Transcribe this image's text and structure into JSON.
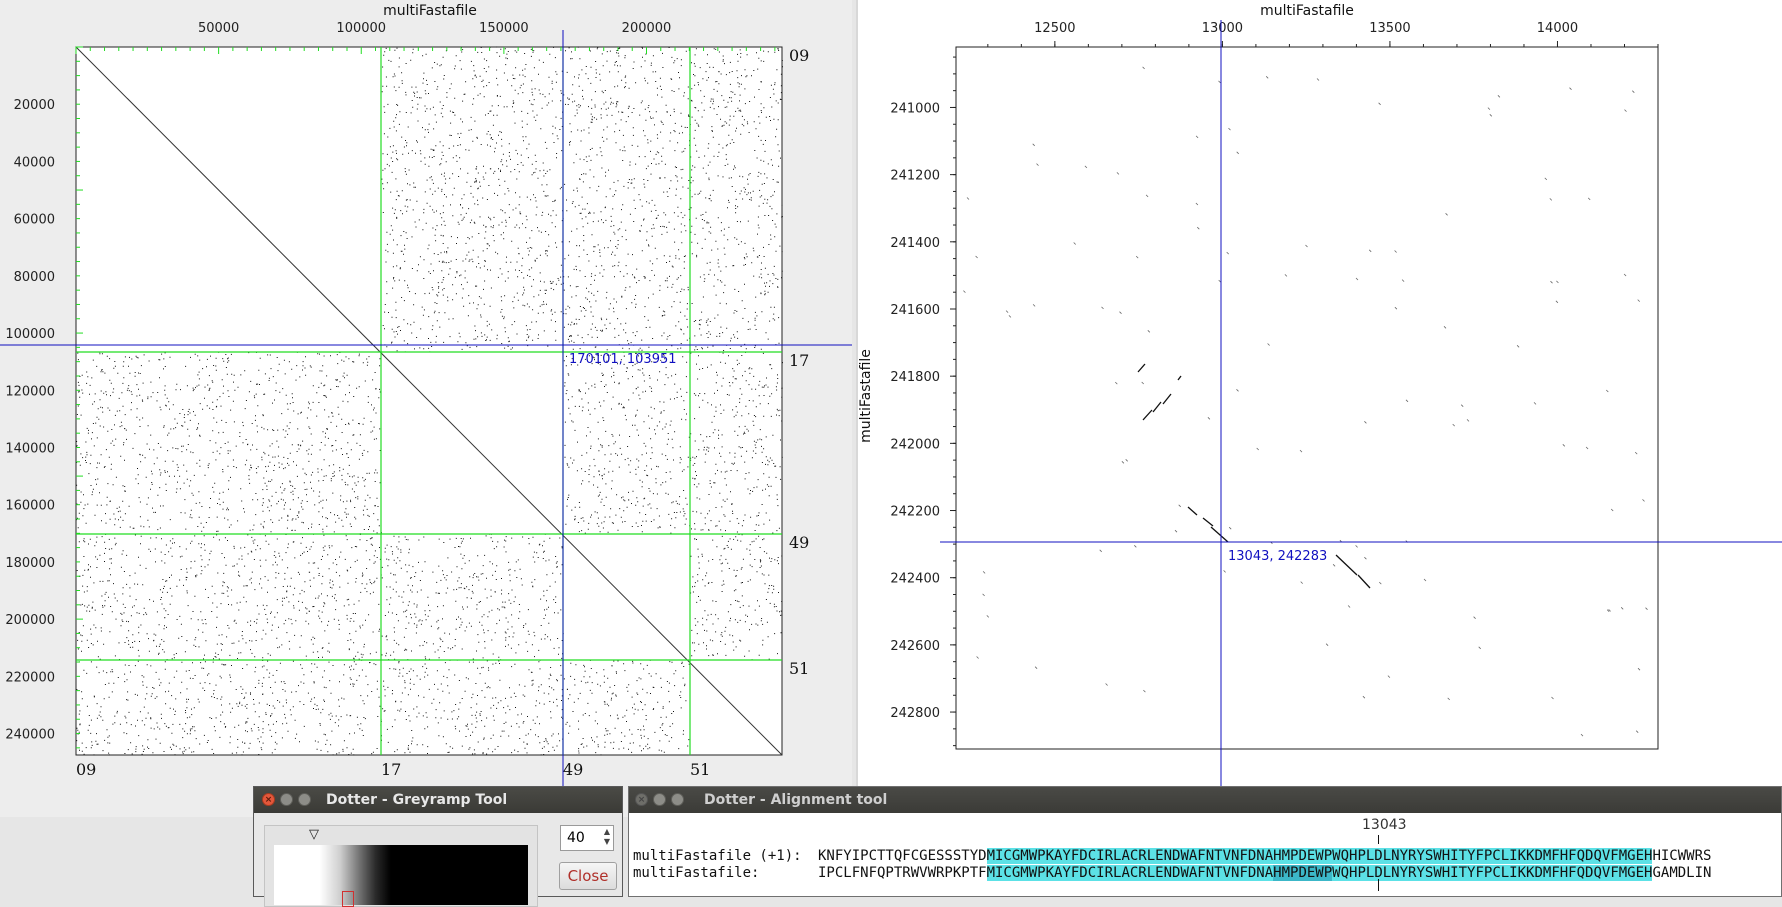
{
  "main_plot": {
    "x_axis_title": "multiFastafile",
    "x_ticks": [
      "50000",
      "100000",
      "150000",
      "200000"
    ],
    "y_ticks": [
      "20000",
      "40000",
      "60000",
      "80000",
      "100000",
      "120000",
      "140000",
      "160000",
      "180000",
      "200000",
      "220000",
      "240000"
    ],
    "right_sequence_labels": [
      "09",
      "17",
      "49",
      "51"
    ],
    "bottom_sequence_labels": [
      "09",
      "17",
      "49",
      "51"
    ],
    "crosshair_label": "170101, 103951",
    "colors": {
      "boundary": "#22dd22",
      "crosshair": "#1010c0"
    }
  },
  "zoom_plot": {
    "x_axis_title": "multiFastafile",
    "y_axis_title": "multiFastafile",
    "x_ticks": [
      "12500",
      "13000",
      "13500",
      "14000"
    ],
    "y_ticks": [
      "241000",
      "241200",
      "241400",
      "241600",
      "241800",
      "242000",
      "242200",
      "242400",
      "242600",
      "242800"
    ],
    "crosshair_label": "13043, 242283"
  },
  "greyramp_tool": {
    "title": "Dotter - Greyramp Tool",
    "spin_value": "40",
    "close_label": "Close"
  },
  "alignment_tool": {
    "title": "Dotter - Alignment tool",
    "position": "13043",
    "row1": {
      "label": "multiFastafile (+1):",
      "pre": "KNFYIPCTTQFCGESSSTYD",
      "hl": "MICGMWPKAYFDCIRLACRLENDWAFNTVNFDNAHMPDEWPWQHPLDLNYRYSWHITYFPCLIKKDMFHFQDQVFMGEH",
      "post": "HICWWRS"
    },
    "row2": {
      "label": "multiFastafile:",
      "pre": "IPCLFNFQPTRWVWRPKPTF",
      "hl_a": "MICGMWPKAYFDCIRLACRLENDWAFNTVNFDNA",
      "hl_b": "HMPDEWP",
      "hl_c": "WQHPLDLNYRYSWHITYFPCLIKKDMFHFQDQVFMGEH",
      "post": "GAMDLIN"
    }
  }
}
